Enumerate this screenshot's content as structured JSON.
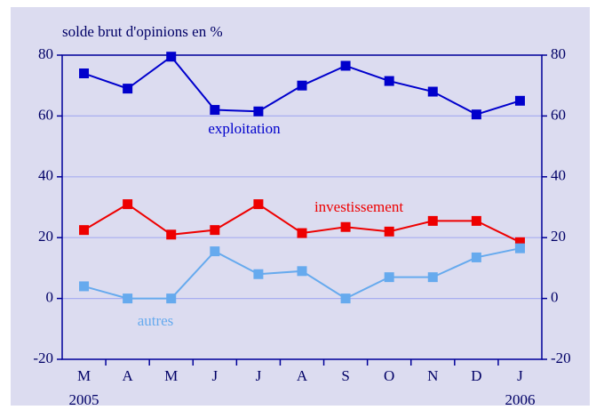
{
  "chart_data": {
    "type": "line",
    "title": "solde brut d'opinions en %",
    "categories": [
      "M",
      "A",
      "M",
      "J",
      "J",
      "A",
      "S",
      "O",
      "N",
      "D",
      "J"
    ],
    "category_sublabels": [
      "2005",
      null,
      null,
      null,
      null,
      null,
      null,
      null,
      null,
      null,
      "2006"
    ],
    "series": [
      {
        "name": "exploitation",
        "color": "#0000cc",
        "values": [
          74,
          69,
          79.5,
          62,
          61.5,
          70,
          76.5,
          71.5,
          68,
          60.5,
          65
        ]
      },
      {
        "name": "investissement",
        "color": "#ee0000",
        "values": [
          22.5,
          31,
          21,
          22.5,
          31,
          21.5,
          23.5,
          22,
          25.5,
          25.5,
          18.5
        ]
      },
      {
        "name": "autres",
        "color": "#66aaee",
        "values": [
          4,
          0,
          0,
          15.5,
          8,
          9,
          0,
          7,
          7,
          13.5,
          16.5
        ]
      }
    ],
    "ylim": [
      -20,
      80
    ],
    "yticks": [
      -20,
      0,
      20,
      40,
      60,
      80
    ],
    "y2lim": [
      -20,
      80
    ],
    "y2ticks": [
      -20,
      0,
      20,
      40,
      60,
      80
    ],
    "grid": true
  }
}
